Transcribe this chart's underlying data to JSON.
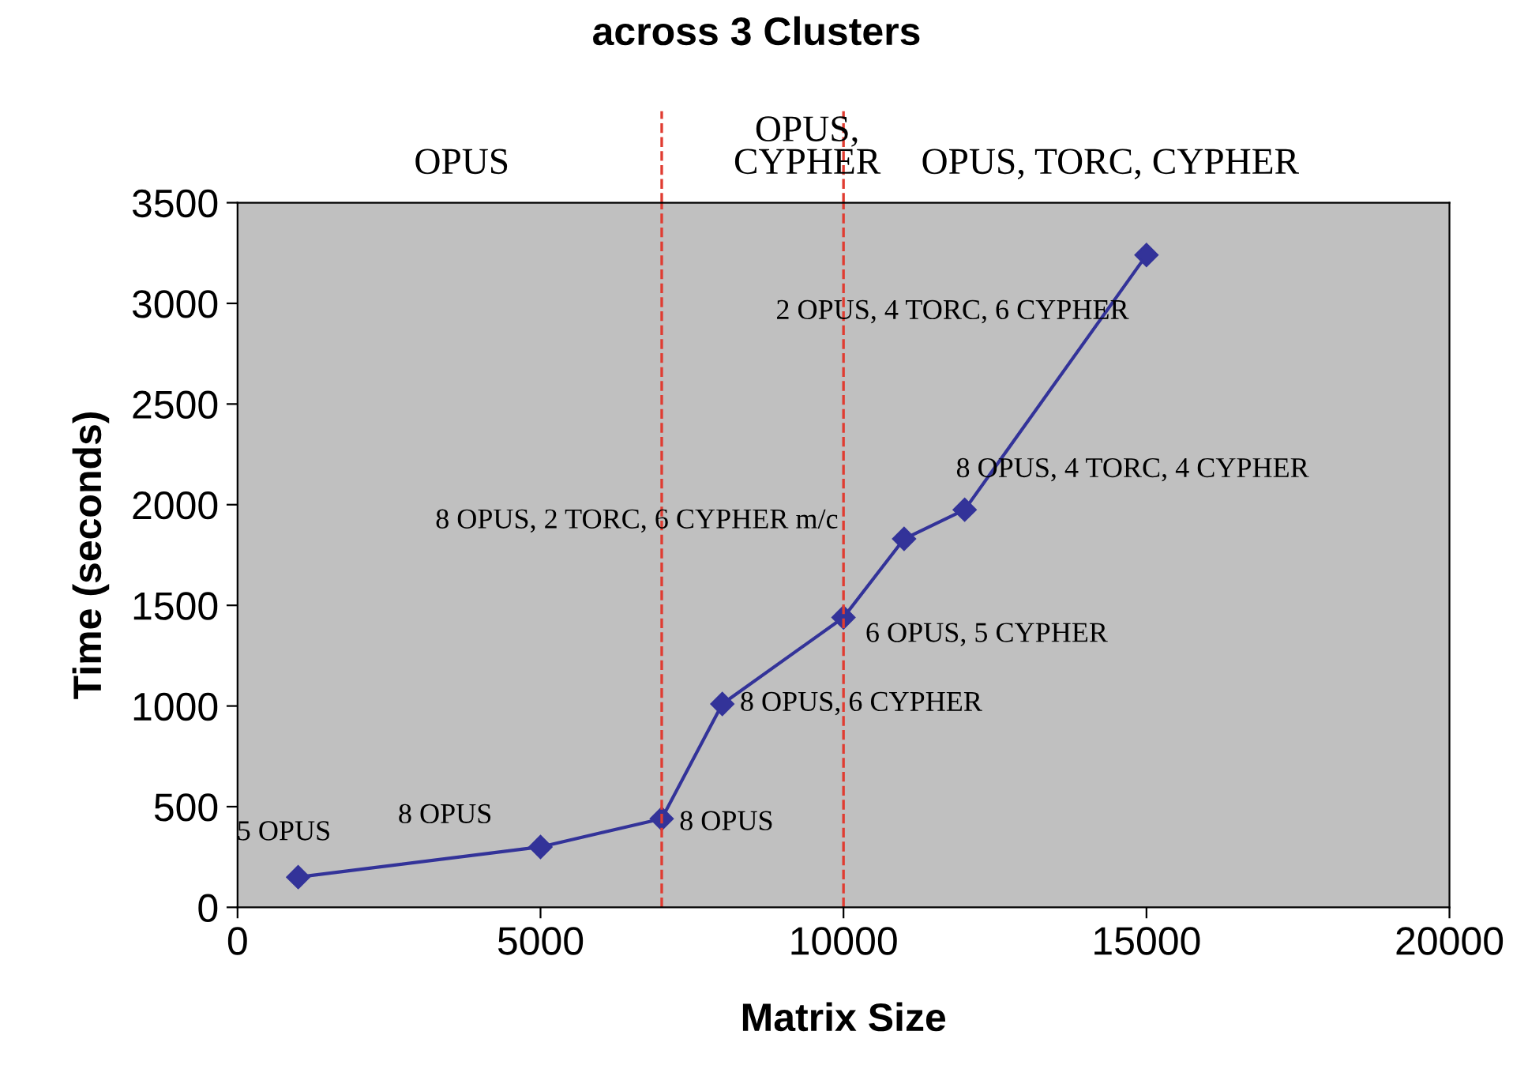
{
  "chart_data": {
    "type": "line",
    "title": "across 3 Clusters",
    "xlabel": "Matrix Size",
    "ylabel": "Time (seconds)",
    "x": [
      1000,
      5000,
      7000,
      8000,
      10000,
      11000,
      12000,
      15000
    ],
    "series": [
      {
        "color": "#333399",
        "values": [
          150,
          300,
          440,
          1010,
          1440,
          1830,
          1975,
          3240
        ]
      }
    ],
    "marker": "diamond",
    "line_style": "solid",
    "grid": false,
    "xlim": [
      0,
      20000
    ],
    "xticks": [
      0,
      5000,
      10000,
      15000,
      20000
    ],
    "ylim": [
      0,
      3500
    ],
    "yticks": [
      0,
      500,
      1000,
      1500,
      2000,
      2500,
      3000,
      3500
    ],
    "ref_lines": [
      {
        "axis": "x",
        "value": 7000,
        "color": "#e03c31",
        "line_style": "dashed"
      },
      {
        "axis": "x",
        "value": 10000,
        "color": "#e03c31",
        "line_style": "dashed"
      }
    ],
    "annotations": [
      "OPUS",
      "OPUS,\nCYPHER",
      "OPUS, TORC, CYPHER",
      {
        "text": "5 OPUS",
        "x": 1000,
        "y": 150
      },
      {
        "text": "8 OPUS",
        "x": 5000,
        "y": 300
      },
      {
        "text": "8 OPUS",
        "x": 7000,
        "y": 440
      },
      {
        "text": "8 OPUS, 6 CYPHER",
        "x": 8000,
        "y": 1010
      },
      {
        "text": "6 OPUS, 5 CYPHER",
        "x": 10000,
        "y": 1440
      },
      {
        "text": "8 OPUS, 2 TORC, 6 CYPHER m/c",
        "x": 11000,
        "y": 1830
      },
      {
        "text": "8 OPUS, 4 TORC, 4 CYPHER",
        "x": 12000,
        "y": 1975
      },
      {
        "text": "2 OPUS, 4 TORC, 6 CYPHER",
        "x": 15000,
        "y": 3240
      }
    ]
  }
}
